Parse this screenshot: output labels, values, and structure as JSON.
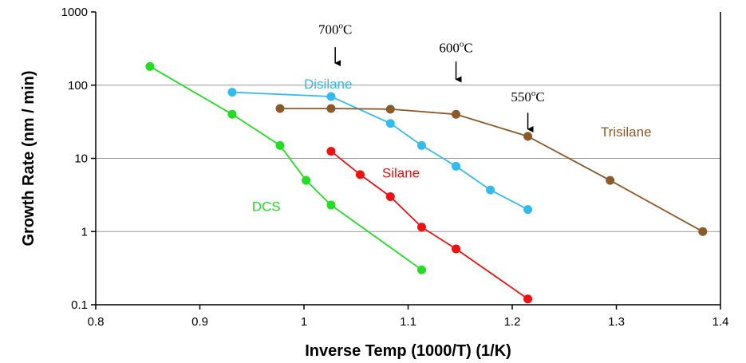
{
  "chart_data": {
    "type": "line",
    "title": "",
    "xlabel": "Inverse Temp (1000/T) (1/K)",
    "ylabel": "Growth Rate (nm / min)",
    "xlim": [
      0.8,
      1.4
    ],
    "ylim": [
      0.1,
      1000
    ],
    "yscale": "log",
    "grid": "horizontal",
    "x_ticks": [
      "0.8",
      "0.9",
      "1",
      "1.1",
      "1.2",
      "1.3",
      "1.4"
    ],
    "y_ticks": [
      "0.1",
      "1",
      "10",
      "100",
      "1000"
    ],
    "series": [
      {
        "name": "Disilane",
        "color": "#33bbee",
        "x": [
          0.931,
          1.026,
          1.083,
          1.113,
          1.146,
          1.179,
          1.215
        ],
        "y": [
          80,
          70,
          30,
          15,
          7.8,
          3.7,
          2.0
        ]
      },
      {
        "name": "Trisilane",
        "color": "#8b5a2b",
        "x": [
          0.977,
          1.026,
          1.083,
          1.146,
          1.215,
          1.294,
          1.383
        ],
        "y": [
          48,
          48,
          47,
          40,
          20,
          5,
          1.0
        ]
      },
      {
        "name": "Silane",
        "color": "#ee1111",
        "x": [
          1.026,
          1.054,
          1.083,
          1.113,
          1.146,
          1.215
        ],
        "y": [
          12.5,
          6.0,
          3.0,
          1.15,
          0.58,
          0.12
        ]
      },
      {
        "name": "DCS",
        "color": "#22dd22",
        "x": [
          0.852,
          0.931,
          0.977,
          1.002,
          1.026,
          1.113
        ],
        "y": [
          180,
          40,
          15,
          5,
          2.3,
          0.3
        ]
      }
    ],
    "series_labels": [
      {
        "series": "Disilane",
        "text": "Disilane",
        "x": 1.0,
        "y": 90
      },
      {
        "series": "Trisilane",
        "text": "Trisilane",
        "x": 1.285,
        "y": 20
      },
      {
        "series": "Silane",
        "text": "Silane",
        "x": 1.075,
        "y": 5.5
      },
      {
        "series": "DCS",
        "text": "DCS",
        "x": 0.95,
        "y": 1.9
      }
    ],
    "annotations": [
      {
        "value": "700",
        "sup": "o",
        "unit": "C",
        "x": 1.03,
        "y_text": 500,
        "y_arrow_start": 330,
        "y_arrow_end": 200
      },
      {
        "value": "600",
        "sup": "o",
        "unit": "C",
        "x": 1.146,
        "y_text": 280,
        "y_arrow_start": 210,
        "y_arrow_end": 120
      },
      {
        "value": "550",
        "sup": "o",
        "unit": "C",
        "x": 1.215,
        "y_text": 60,
        "y_arrow_start": 42,
        "y_arrow_end": 25
      }
    ]
  }
}
